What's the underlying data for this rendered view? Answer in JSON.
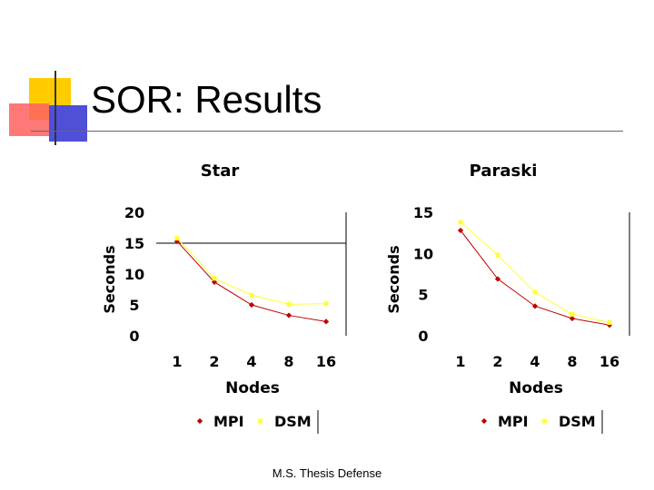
{
  "slide": {
    "title": "SOR: Results",
    "footer": "M.S. Thesis Defense"
  },
  "colors": {
    "mpi": "#c00000",
    "dsm": "#ffff33",
    "deco_yellow": "#ffcc00",
    "deco_red": "#ff5050",
    "deco_blue": "#5a5ad8"
  },
  "chart_data": [
    {
      "type": "line",
      "title": "Star",
      "xlabel": "Nodes",
      "ylabel": "Seconds",
      "categories": [
        "1",
        "2",
        "4",
        "8",
        "16"
      ],
      "yticks": [
        0,
        5,
        10,
        15,
        20
      ],
      "ylim": [
        0,
        20
      ],
      "gridlines": [
        15
      ],
      "series": [
        {
          "name": "MPI",
          "values": [
            15.3,
            8.7,
            5.0,
            3.3,
            2.3
          ]
        },
        {
          "name": "DSM",
          "values": [
            15.8,
            9.3,
            6.6,
            5.1,
            5.2
          ]
        }
      ],
      "legend": [
        "MPI",
        "DSM"
      ]
    },
    {
      "type": "line",
      "title": "Paraski",
      "xlabel": "Nodes",
      "ylabel": "Seconds",
      "categories": [
        "1",
        "2",
        "4",
        "8",
        "16"
      ],
      "yticks": [
        0,
        5,
        10,
        15
      ],
      "ylim": [
        0,
        15
      ],
      "gridlines": [],
      "series": [
        {
          "name": "MPI",
          "values": [
            12.8,
            6.9,
            3.6,
            2.1,
            1.3
          ]
        },
        {
          "name": "DSM",
          "values": [
            13.8,
            9.8,
            5.3,
            2.6,
            1.6
          ]
        }
      ],
      "legend": [
        "MPI",
        "DSM"
      ]
    }
  ]
}
